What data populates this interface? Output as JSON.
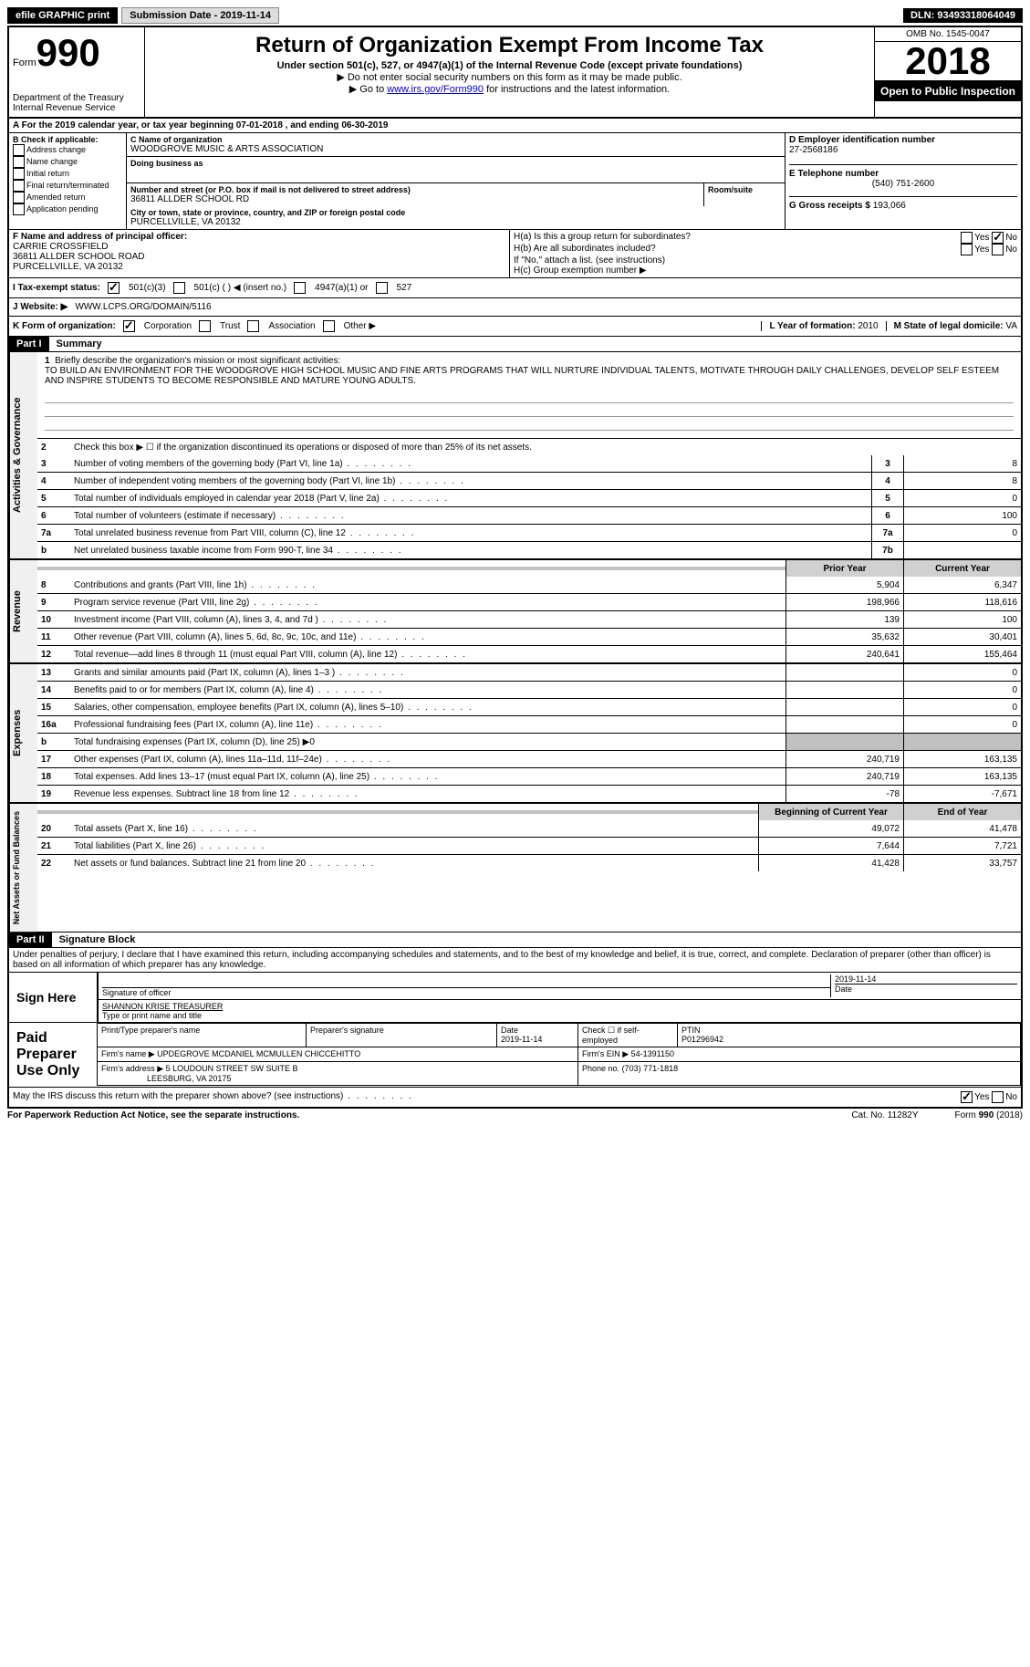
{
  "topbar": {
    "efile_label": "efile GRAPHIC print",
    "submission_label": "Submission Date - 2019-11-14",
    "dln_label": "DLN: 93493318064049"
  },
  "header": {
    "form_prefix": "Form",
    "form_number": "990",
    "dept": "Department of the Treasury",
    "irs": "Internal Revenue Service",
    "title": "Return of Organization Exempt From Income Tax",
    "subtitle": "Under section 501(c), 527, or 4947(a)(1) of the Internal Revenue Code (except private foundations)",
    "note1": "▶ Do not enter social security numbers on this form as it may be made public.",
    "note2_prefix": "▶ Go to ",
    "note2_link": "www.irs.gov/Form990",
    "note2_suffix": " for instructions and the latest information.",
    "omb": "OMB No. 1545-0047",
    "year": "2018",
    "open_public": "Open to Public Inspection"
  },
  "period": "A For the 2019 calendar year, or tax year beginning 07-01-2018   , and ending 06-30-2019",
  "section_b": {
    "header": "B Check if applicable:",
    "opts": [
      "Address change",
      "Name change",
      "Initial return",
      "Final return/terminated",
      "Amended return",
      "Application pending"
    ]
  },
  "section_c": {
    "name_label": "C Name of organization",
    "name": "WOODGROVE MUSIC & ARTS ASSOCIATION",
    "dba_label": "Doing business as",
    "addr_label": "Number and street (or P.O. box if mail is not delivered to street address)",
    "room_label": "Room/suite",
    "addr": "36811 ALLDER SCHOOL RD",
    "city_label": "City or town, state or province, country, and ZIP or foreign postal code",
    "city": "PURCELLVILLE, VA  20132"
  },
  "section_d": {
    "label": "D Employer identification number",
    "value": "27-2568186"
  },
  "section_e": {
    "label": "E Telephone number",
    "value": "(540) 751-2600"
  },
  "section_g": {
    "label": "G Gross receipts $",
    "value": "193,066"
  },
  "section_f": {
    "label": "F Name and address of principal officer:",
    "name": "CARRIE CROSSFIELD",
    "addr1": "36811 ALLDER SCHOOL ROAD",
    "addr2": "PURCELLVILLE, VA  20132"
  },
  "section_h": {
    "ha_label": "H(a)  Is this a group return for subordinates?",
    "hb_label": "H(b)  Are all subordinates included?",
    "hb_note": "If \"No,\" attach a list. (see instructions)",
    "hc_label": "H(c)  Group exemption number ▶",
    "yes": "Yes",
    "no": "No"
  },
  "section_i": {
    "label": "I  Tax-exempt status:",
    "o1": "501(c)(3)",
    "o2": "501(c) (   ) ◀ (insert no.)",
    "o3": "4947(a)(1) or",
    "o4": "527"
  },
  "section_j": {
    "label": "J  Website: ▶",
    "value": "WWW.LCPS.ORG/DOMAIN/5116"
  },
  "section_k": {
    "label": "K Form of organization:",
    "o1": "Corporation",
    "o2": "Trust",
    "o3": "Association",
    "o4": "Other ▶"
  },
  "section_l": {
    "label": "L Year of formation:",
    "value": "2010"
  },
  "section_m": {
    "label": "M State of legal domicile:",
    "value": "VA"
  },
  "part1": {
    "header": "Part I",
    "title": "Summary",
    "tab_gov": "Activities & Governance",
    "tab_rev": "Revenue",
    "tab_exp": "Expenses",
    "tab_net": "Net Assets or Fund Balances",
    "line1_label": "Briefly describe the organization's mission or most significant activities:",
    "line1_text": "TO BUILD AN ENVIRONMENT FOR THE WOODGROVE HIGH SCHOOL MUSIC AND FINE ARTS PROGRAMS THAT WILL NURTURE INDIVIDUAL TALENTS, MOTIVATE THROUGH DAILY CHALLENGES, DEVELOP SELF ESTEEM AND INSPIRE STUDENTS TO BECOME RESPONSIBLE AND MATURE YOUNG ADULTS.",
    "line2": "Check this box ▶ ☐  if the organization discontinued its operations or disposed of more than 25% of its net assets.",
    "prior_year": "Prior Year",
    "current_year": "Current Year",
    "begin_year": "Beginning of Current Year",
    "end_year": "End of Year",
    "rows_gov": [
      {
        "n": "3",
        "t": "Number of voting members of the governing body (Part VI, line 1a)",
        "box": "3",
        "v": "8"
      },
      {
        "n": "4",
        "t": "Number of independent voting members of the governing body (Part VI, line 1b)",
        "box": "4",
        "v": "8"
      },
      {
        "n": "5",
        "t": "Total number of individuals employed in calendar year 2018 (Part V, line 2a)",
        "box": "5",
        "v": "0"
      },
      {
        "n": "6",
        "t": "Total number of volunteers (estimate if necessary)",
        "box": "6",
        "v": "100"
      },
      {
        "n": "7a",
        "t": "Total unrelated business revenue from Part VIII, column (C), line 12",
        "box": "7a",
        "v": "0"
      },
      {
        "n": "b",
        "t": "Net unrelated business taxable income from Form 990-T, line 34",
        "box": "7b",
        "v": ""
      }
    ],
    "rows_rev": [
      {
        "n": "8",
        "t": "Contributions and grants (Part VIII, line 1h)",
        "p": "5,904",
        "c": "6,347"
      },
      {
        "n": "9",
        "t": "Program service revenue (Part VIII, line 2g)",
        "p": "198,966",
        "c": "118,616"
      },
      {
        "n": "10",
        "t": "Investment income (Part VIII, column (A), lines 3, 4, and 7d )",
        "p": "139",
        "c": "100"
      },
      {
        "n": "11",
        "t": "Other revenue (Part VIII, column (A), lines 5, 6d, 8c, 9c, 10c, and 11e)",
        "p": "35,632",
        "c": "30,401"
      },
      {
        "n": "12",
        "t": "Total revenue—add lines 8 through 11 (must equal Part VIII, column (A), line 12)",
        "p": "240,641",
        "c": "155,464"
      }
    ],
    "rows_exp": [
      {
        "n": "13",
        "t": "Grants and similar amounts paid (Part IX, column (A), lines 1–3 )",
        "p": "",
        "c": "0"
      },
      {
        "n": "14",
        "t": "Benefits paid to or for members (Part IX, column (A), line 4)",
        "p": "",
        "c": "0"
      },
      {
        "n": "15",
        "t": "Salaries, other compensation, employee benefits (Part IX, column (A), lines 5–10)",
        "p": "",
        "c": "0"
      },
      {
        "n": "16a",
        "t": "Professional fundraising fees (Part IX, column (A), line 11e)",
        "p": "",
        "c": "0"
      },
      {
        "n": "b",
        "t": "Total fundraising expenses (Part IX, column (D), line 25) ▶0",
        "p": "gray",
        "c": "gray"
      },
      {
        "n": "17",
        "t": "Other expenses (Part IX, column (A), lines 11a–11d, 11f–24e)",
        "p": "240,719",
        "c": "163,135"
      },
      {
        "n": "18",
        "t": "Total expenses. Add lines 13–17 (must equal Part IX, column (A), line 25)",
        "p": "240,719",
        "c": "163,135"
      },
      {
        "n": "19",
        "t": "Revenue less expenses. Subtract line 18 from line 12",
        "p": "-78",
        "c": "-7,671"
      }
    ],
    "rows_net": [
      {
        "n": "20",
        "t": "Total assets (Part X, line 16)",
        "p": "49,072",
        "c": "41,478"
      },
      {
        "n": "21",
        "t": "Total liabilities (Part X, line 26)",
        "p": "7,644",
        "c": "7,721"
      },
      {
        "n": "22",
        "t": "Net assets or fund balances. Subtract line 21 from line 20",
        "p": "41,428",
        "c": "33,757"
      }
    ]
  },
  "part2": {
    "header": "Part II",
    "title": "Signature Block",
    "perjury": "Under penalties of perjury, I declare that I have examined this return, including accompanying schedules and statements, and to the best of my knowledge and belief, it is true, correct, and complete. Declaration of preparer (other than officer) is based on all information of which preparer has any knowledge.",
    "sign_here": "Sign Here",
    "sig_officer": "Signature of officer",
    "sig_date": "2019-11-14",
    "date_label": "Date",
    "officer_name": "SHANNON KRISE TREASURER",
    "officer_label": "Type or print name and title",
    "paid_prep": "Paid Preparer Use Only",
    "prep_name_label": "Print/Type preparer's name",
    "prep_sig_label": "Preparer's signature",
    "prep_date_label": "Date",
    "prep_date": "2019-11-14",
    "check_self": "Check ☐ if self-employed",
    "ptin_label": "PTIN",
    "ptin": "P01296942",
    "firm_name_label": "Firm's name    ▶",
    "firm_name": "UPDEGROVE MCDANIEL MCMULLEN CHICCEHITTO",
    "firm_ein_label": "Firm's EIN ▶",
    "firm_ein": "54-1391150",
    "firm_addr_label": "Firm's address ▶",
    "firm_addr": "5 LOUDOUN STREET SW SUITE B",
    "firm_city": "LEESBURG, VA  20175",
    "phone_label": "Phone no.",
    "phone": "(703) 771-1818",
    "discuss": "May the IRS discuss this return with the preparer shown above? (see instructions)"
  },
  "footer": {
    "paperwork": "For Paperwork Reduction Act Notice, see the separate instructions.",
    "cat": "Cat. No. 11282Y",
    "form": "Form 990 (2018)"
  }
}
